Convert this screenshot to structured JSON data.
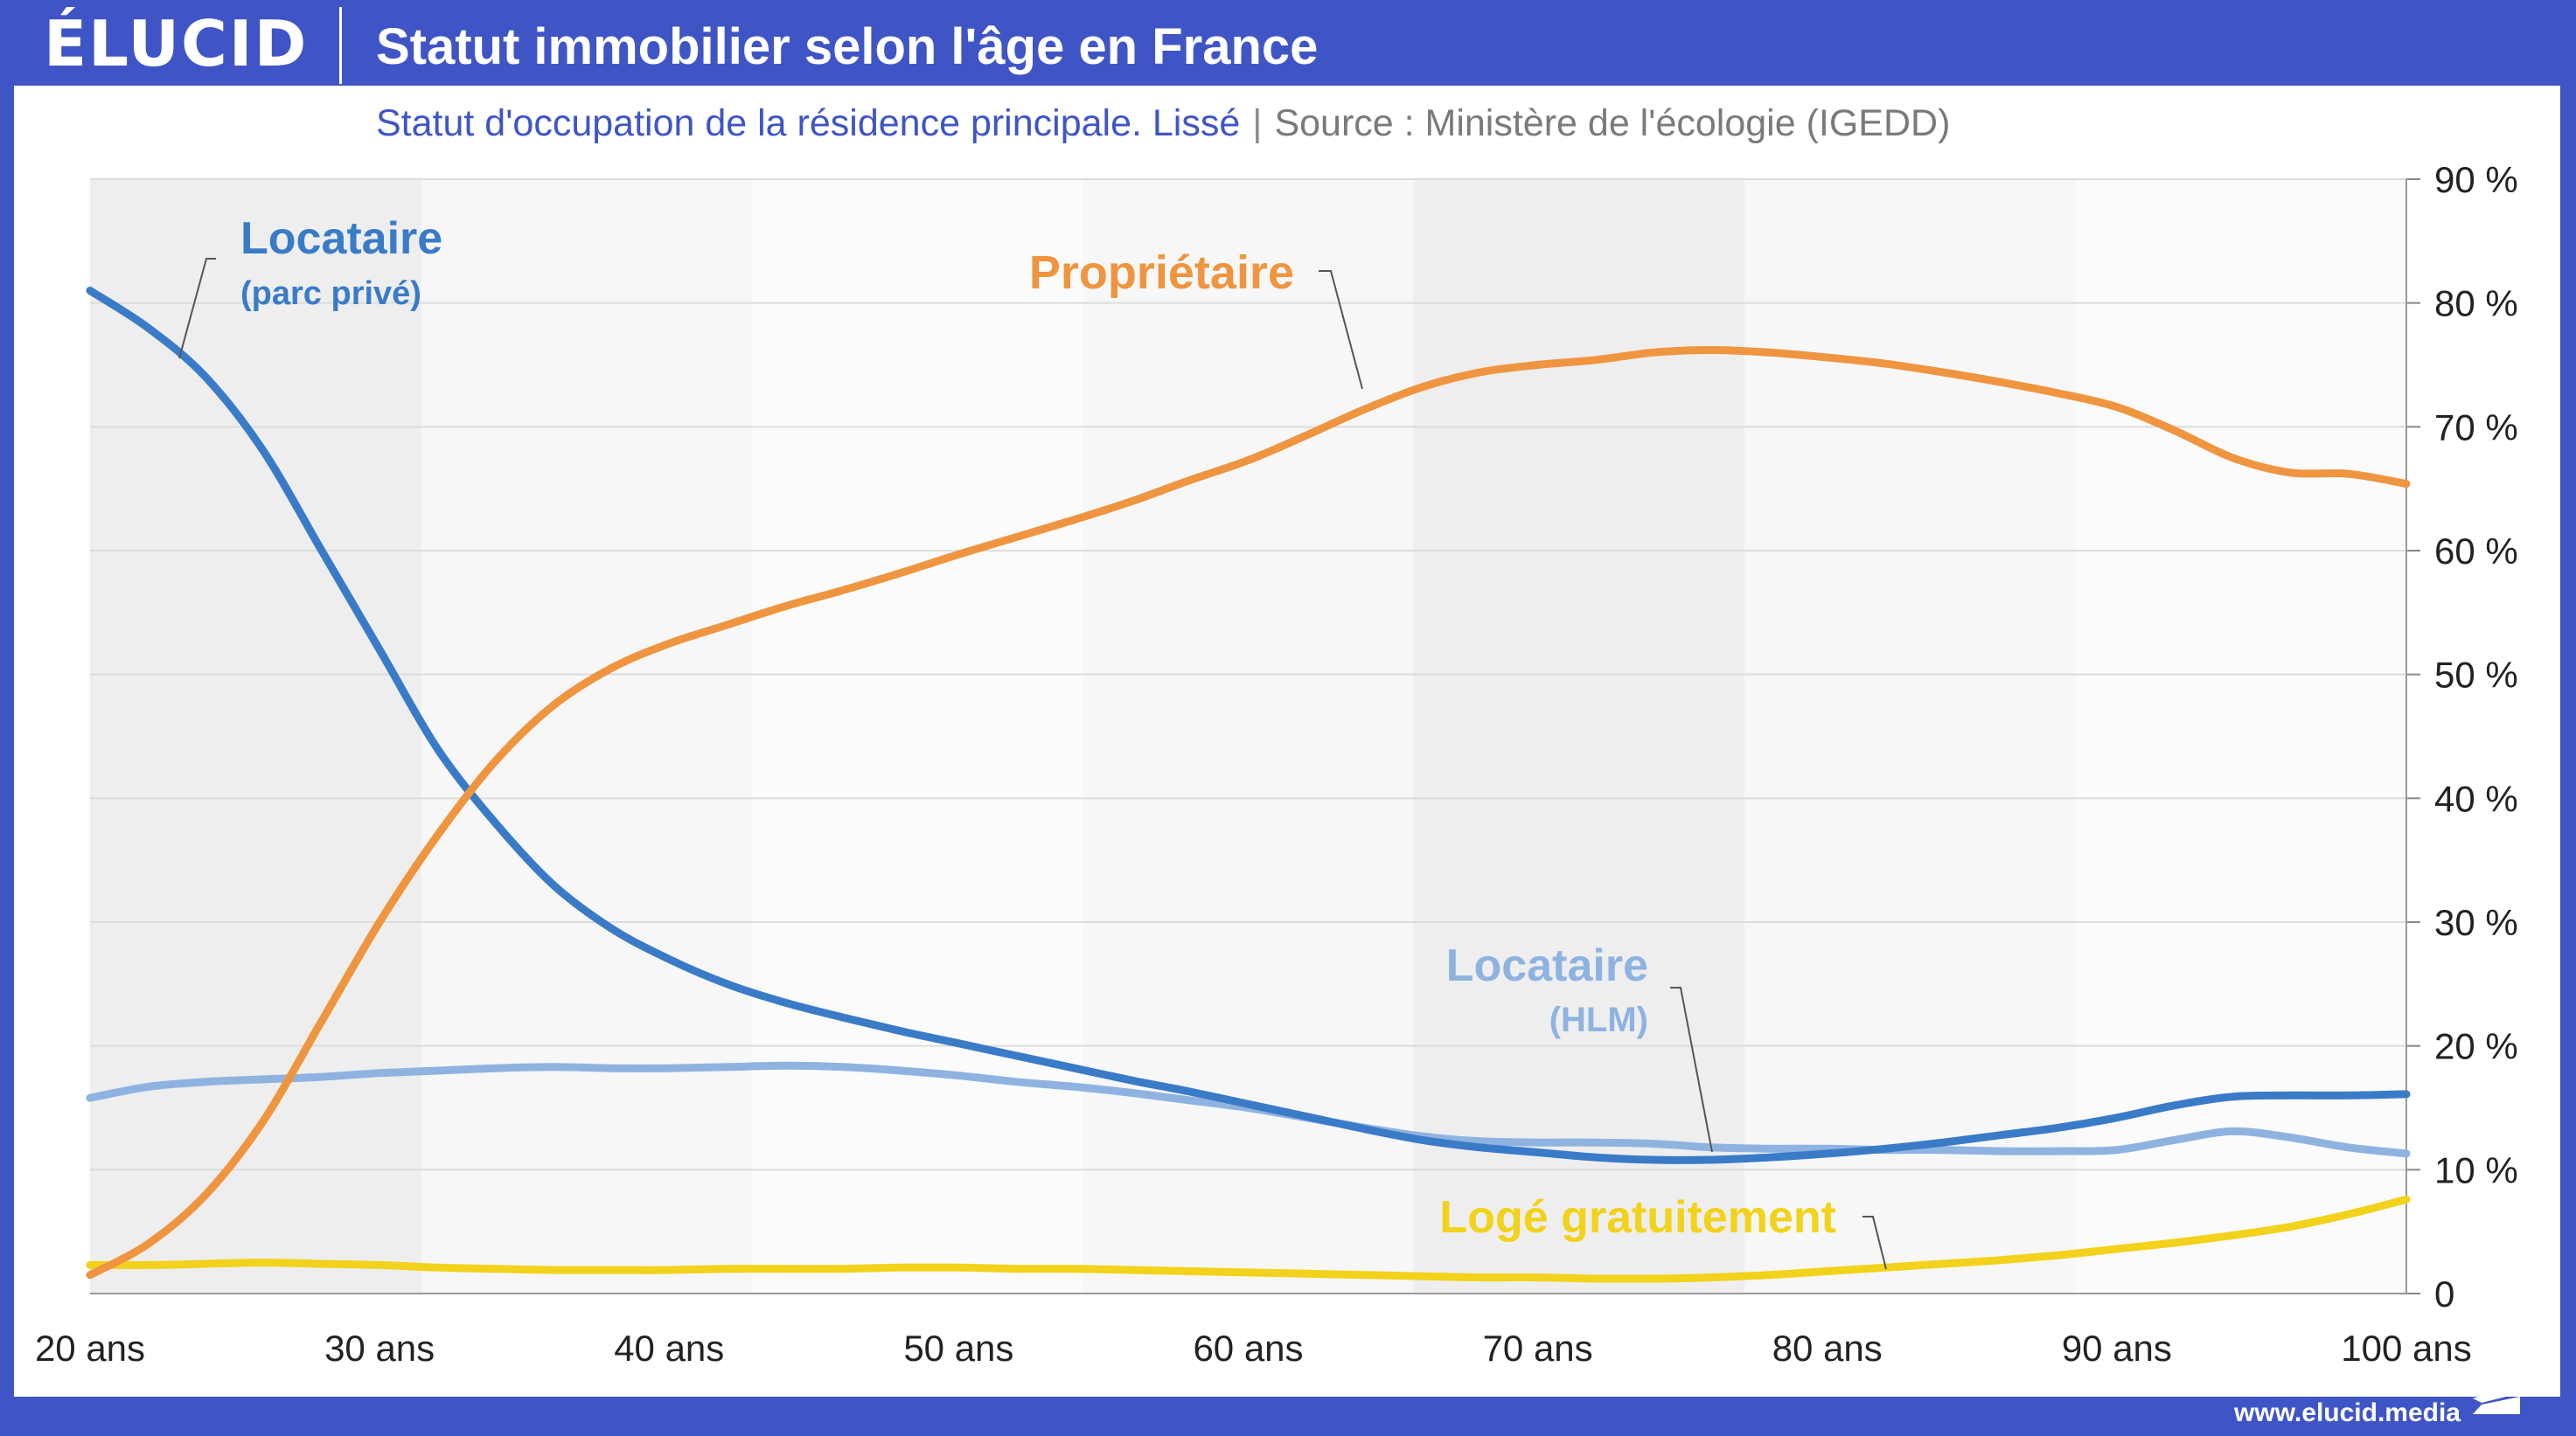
{
  "header": {
    "logo": "ÉLUCID",
    "title": "Statut immobilier selon l'âge en France"
  },
  "subtitle": {
    "main": "Statut d'occupation de la résidence principale. Lissé",
    "separator": "|",
    "source": "Source : Ministère de l'écologie (IGEDD)"
  },
  "footer": {
    "url": "www.elucid.media"
  },
  "colors": {
    "brand": "#3f55c6",
    "locataire_prive": "#3a7bc8",
    "proprietaire": "#ef9540",
    "locataire_hlm": "#8fb3e0",
    "loge_gratuitement": "#f2d21a"
  },
  "chart_data": {
    "type": "line",
    "x_unit": "ans",
    "x": [
      20,
      22,
      24,
      26,
      28,
      30,
      32,
      34,
      36,
      38,
      40,
      42,
      44,
      46,
      48,
      50,
      52,
      54,
      56,
      58,
      60,
      62,
      64,
      66,
      68,
      70,
      72,
      74,
      76,
      78,
      80,
      82,
      84,
      86,
      88,
      90,
      92,
      94,
      96,
      98,
      100
    ],
    "series": [
      {
        "name": "Locataire (parc privé)",
        "label_main": "Locataire",
        "label_sub": "(parc privé)",
        "values": [
          81,
          78,
          74,
          68,
          60,
          52,
          44,
          38,
          33,
          29.5,
          27,
          25,
          23.5,
          22.3,
          21.2,
          20.2,
          19.2,
          18.2,
          17.2,
          16.3,
          15.3,
          14.3,
          13.3,
          12.4,
          11.8,
          11.4,
          11,
          10.8,
          10.8,
          11,
          11.3,
          11.7,
          12.2,
          12.8,
          13.4,
          14.2,
          15.2,
          15.9,
          16,
          16,
          16.1
        ]
      },
      {
        "name": "Propriétaire",
        "label_main": "Propriétaire",
        "values": [
          1.5,
          4,
          8,
          14,
          22,
          30,
          37,
          43,
          47.5,
          50.5,
          52.5,
          54,
          55.5,
          56.8,
          58.2,
          59.7,
          61.1,
          62.5,
          64,
          65.7,
          67.3,
          69.3,
          71.4,
          73.2,
          74.4,
          75,
          75.4,
          76,
          76.2,
          76,
          75.6,
          75.1,
          74.4,
          73.6,
          72.7,
          71.6,
          69.7,
          67.5,
          66.3,
          66.2,
          65.4
        ]
      },
      {
        "name": "Locataire (HLM)",
        "label_main": "Locataire",
        "label_sub": "(HLM)",
        "values": [
          15.8,
          16.7,
          17.1,
          17.3,
          17.5,
          17.8,
          18,
          18.2,
          18.3,
          18.2,
          18.2,
          18.3,
          18.4,
          18.3,
          18,
          17.6,
          17.1,
          16.7,
          16.2,
          15.6,
          15,
          14.2,
          13.4,
          12.7,
          12.3,
          12.2,
          12.2,
          12.1,
          11.8,
          11.7,
          11.7,
          11.6,
          11.6,
          11.5,
          11.5,
          11.6,
          12.4,
          13.1,
          12.6,
          11.8,
          11.3
        ]
      },
      {
        "name": "Logé gratuitement",
        "label_main": "Logé gratuitement",
        "values": [
          2.3,
          2.3,
          2.4,
          2.5,
          2.4,
          2.3,
          2.1,
          2,
          1.9,
          1.9,
          1.9,
          2,
          2,
          2,
          2.1,
          2.1,
          2,
          2,
          1.9,
          1.8,
          1.7,
          1.6,
          1.5,
          1.4,
          1.3,
          1.3,
          1.2,
          1.2,
          1.3,
          1.5,
          1.8,
          2.1,
          2.4,
          2.7,
          3.1,
          3.6,
          4.1,
          4.7,
          5.4,
          6.4,
          7.6
        ]
      }
    ],
    "x_ticks": [
      "20 ans",
      "30 ans",
      "40 ans",
      "50 ans",
      "60 ans",
      "70 ans",
      "80 ans",
      "90 ans",
      "100 ans"
    ],
    "y_ticks": [
      "0",
      "10 %",
      "20 %",
      "30 %",
      "40 %",
      "50 %",
      "60 %",
      "70 %",
      "80 %",
      "90 %"
    ],
    "xlim": [
      20,
      100
    ],
    "ylim": [
      0,
      90
    ],
    "grid": "horizontal",
    "y_axis_side": "right",
    "background_bands": true
  }
}
